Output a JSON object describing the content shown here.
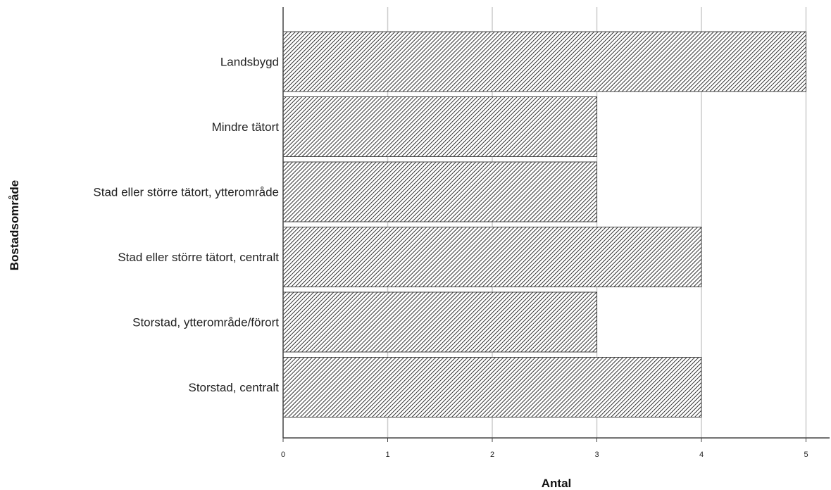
{
  "chart_data": {
    "type": "bar",
    "orientation": "horizontal",
    "xlabel": "Antal",
    "ylabel": "Bostadsområde",
    "categories": [
      "Landsbygd",
      "Mindre tätort",
      "Stad eller större tätort, ytterområde",
      "Stad eller större tätort, centralt",
      "Storstad, ytterområde/förort",
      "Storstad, centralt"
    ],
    "values": [
      5,
      3,
      3,
      4,
      3,
      4
    ],
    "xlim": [
      0,
      5.2
    ],
    "xticks": [
      "0",
      "1",
      "2",
      "3",
      "4",
      "5"
    ],
    "grid": "vertical",
    "bar_fill": "diagonal-hatch",
    "colors": {
      "hatch": "#333333",
      "bar_border": "#444444",
      "grid": "#cccccc",
      "axis": "#444444"
    }
  }
}
